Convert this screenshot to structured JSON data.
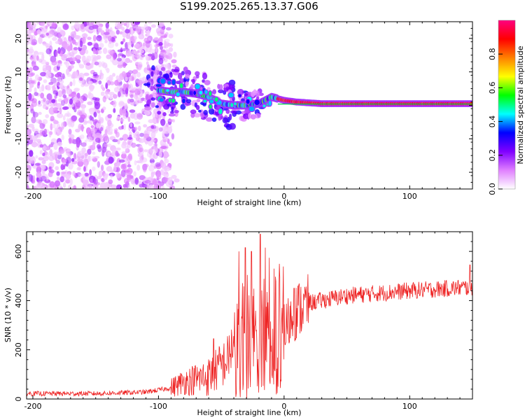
{
  "chart_data": [
    {
      "type": "heatmap",
      "title": "S199.2025.265.13.37.G06",
      "xlabel": "Height of straight line (km)",
      "ylabel": "Frequency (Hz)",
      "xlim": [
        -205,
        150
      ],
      "ylim": [
        -25,
        25
      ],
      "xticks": [
        -200,
        -100,
        0,
        100
      ],
      "yticks": [
        -20,
        -10,
        0,
        10,
        20
      ],
      "colorbar": {
        "label": "Normalized spectral amplitude",
        "range": [
          0,
          1
        ],
        "ticks": [
          0.0,
          0.2,
          0.4,
          0.6,
          0.8
        ],
        "colors": [
          "#ffffff",
          "#e080ff",
          "#8000ff",
          "#0000ff",
          "#00ffff",
          "#00ff00",
          "#ffff00",
          "#ff8000",
          "#ff0000",
          "#ff0080"
        ]
      },
      "ridge": [
        {
          "x": -165,
          "y": 5
        },
        {
          "x": -100,
          "y": 4.5
        },
        {
          "x": -90,
          "y": 4
        },
        {
          "x": -80,
          "y": 4
        },
        {
          "x": -70,
          "y": 3.5
        },
        {
          "x": -60,
          "y": 2.5
        },
        {
          "x": -50,
          "y": 0.5
        },
        {
          "x": -40,
          "y": 0
        },
        {
          "x": -30,
          "y": 0
        },
        {
          "x": -20,
          "y": 0.5
        },
        {
          "x": -10,
          "y": 2.5
        },
        {
          "x": -5,
          "y": 2
        },
        {
          "x": 0,
          "y": 1.5
        },
        {
          "x": 10,
          "y": 1
        },
        {
          "x": 30,
          "y": 0.5
        },
        {
          "x": 150,
          "y": 0.5
        }
      ]
    },
    {
      "type": "line",
      "xlabel": "Height of straight line (km)",
      "ylabel": "SNR (10 * v/v)",
      "xlim": [
        -205,
        150
      ],
      "ylim": [
        0,
        680
      ],
      "xticks": [
        -200,
        -100,
        0,
        100
      ],
      "yticks": [
        0,
        200,
        400,
        600
      ],
      "color": "#ee2222",
      "envelope": [
        {
          "x": -205,
          "y": 22
        },
        {
          "x": -150,
          "y": 22
        },
        {
          "x": -110,
          "y": 28
        },
        {
          "x": -90,
          "y": 45
        },
        {
          "x": -80,
          "y": 70
        },
        {
          "x": -60,
          "y": 90
        },
        {
          "x": -45,
          "y": 160
        },
        {
          "x": -38,
          "y": 270
        },
        {
          "x": -30,
          "y": 300
        },
        {
          "x": -20,
          "y": 310
        },
        {
          "x": -10,
          "y": 320
        },
        {
          "x": 0,
          "y": 280
        },
        {
          "x": 10,
          "y": 360
        },
        {
          "x": 20,
          "y": 390
        },
        {
          "x": 50,
          "y": 420
        },
        {
          "x": 100,
          "y": 440
        },
        {
          "x": 150,
          "y": 455
        }
      ],
      "peaks": [
        {
          "x": -56,
          "y": 245
        },
        {
          "x": -36,
          "y": 600
        },
        {
          "x": -31,
          "y": 615
        },
        {
          "x": -26,
          "y": 600
        },
        {
          "x": -19,
          "y": 670
        },
        {
          "x": -15,
          "y": 615
        },
        {
          "x": -8,
          "y": 530
        },
        {
          "x": 8,
          "y": 450
        },
        {
          "x": 148,
          "y": 545
        }
      ]
    }
  ]
}
